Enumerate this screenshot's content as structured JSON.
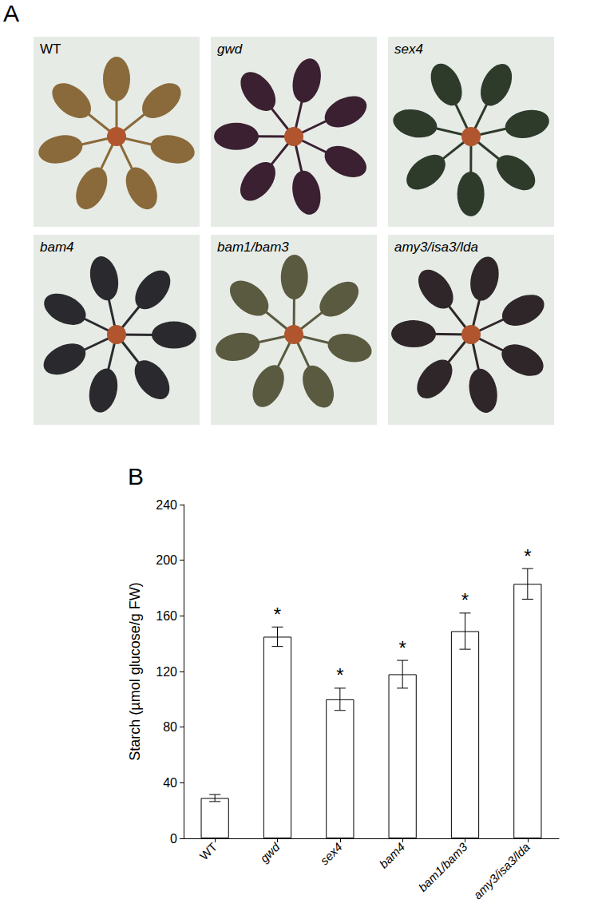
{
  "panel_labels": [
    "A",
    "B"
  ],
  "photo_labels": [
    "WT",
    "gwd",
    "sex4",
    "bam4",
    "bam1/bam3",
    "amy3/isa3/lda"
  ],
  "chart_data": {
    "type": "bar",
    "ylabel": "Starch (µmol glucose/g FW)",
    "categories": [
      "WT",
      "gwd",
      "sex4",
      "bam4",
      "bam1/bam3",
      "amy3/isa3/lda"
    ],
    "values": [
      29,
      145,
      100,
      118,
      149,
      183
    ],
    "errors": [
      2.5,
      7,
      8,
      10,
      13,
      11
    ],
    "significance": [
      null,
      "*",
      "*",
      "*",
      "*",
      "*"
    ],
    "color": "#ffffff",
    "ylim": [
      0,
      240
    ],
    "yticks": [
      0,
      40,
      80,
      120,
      160,
      200,
      240
    ],
    "grid": false
  }
}
